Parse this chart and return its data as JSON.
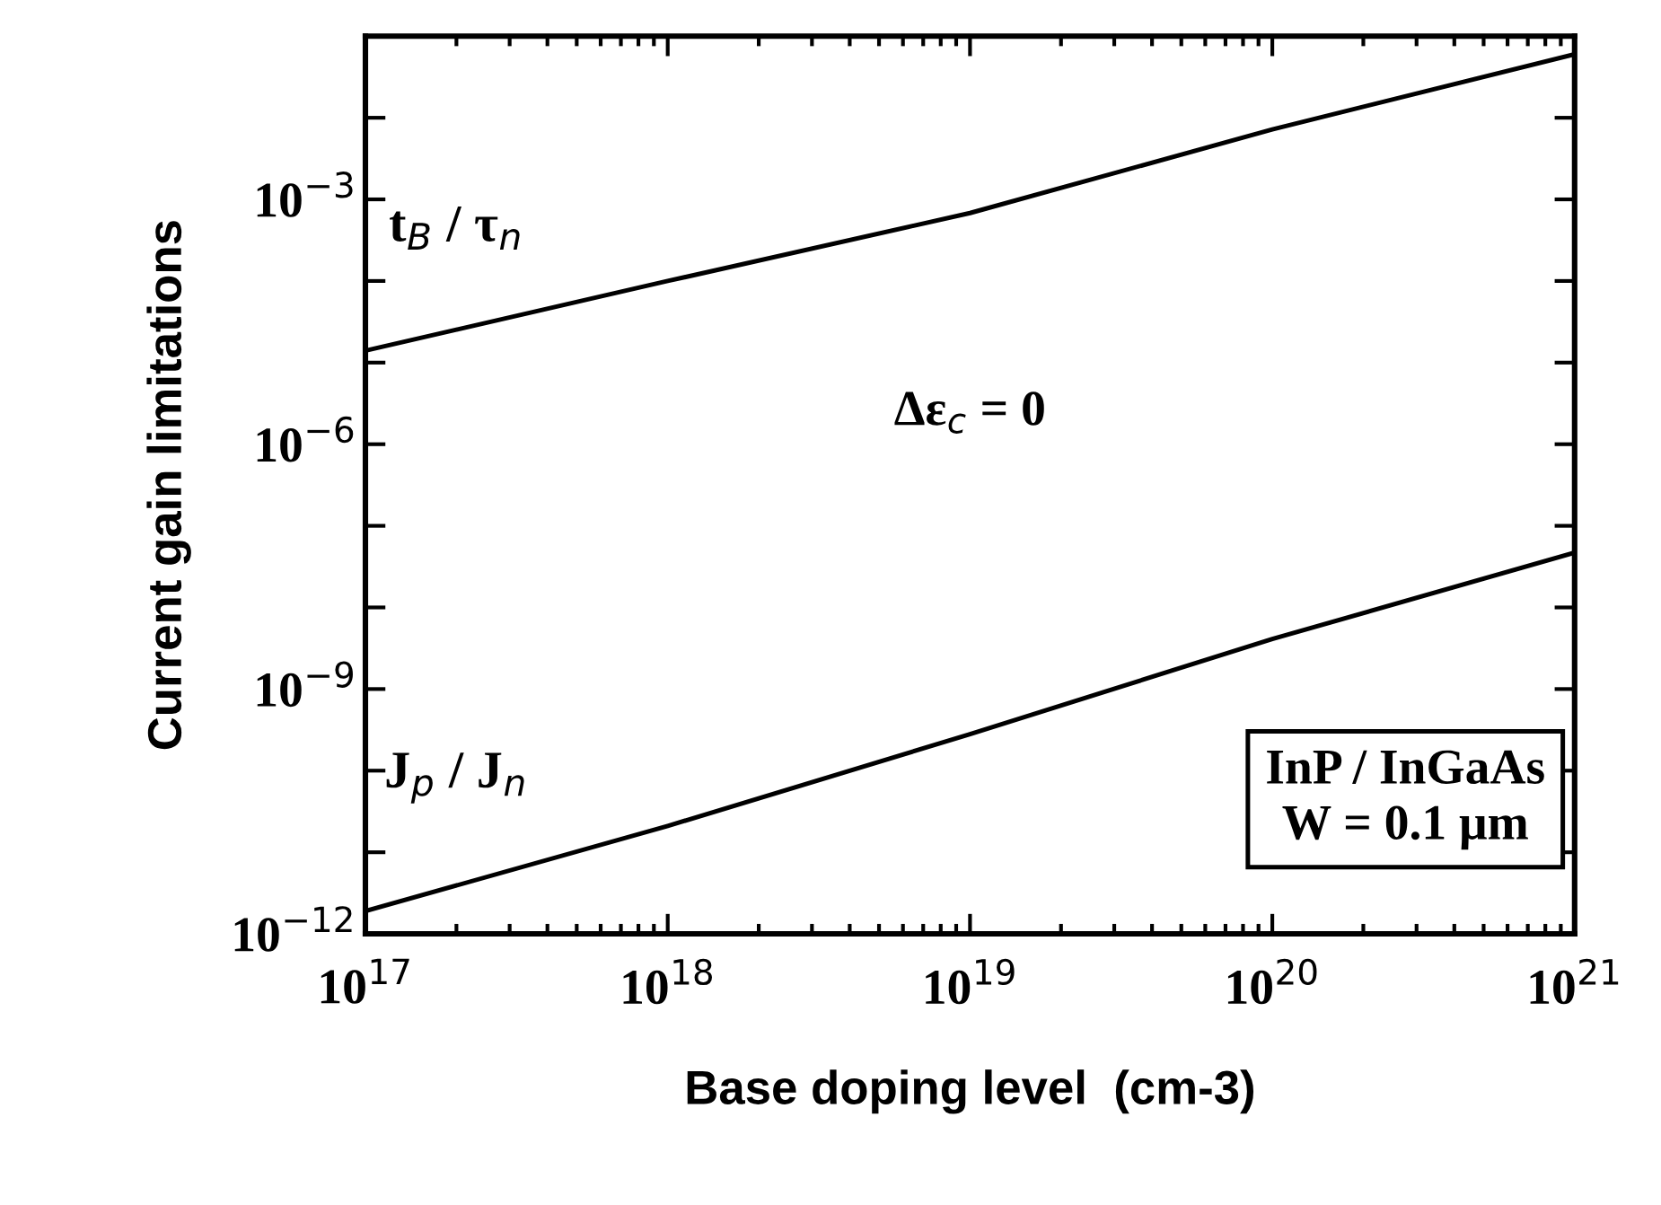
{
  "chart_data": {
    "type": "line",
    "xlabel": "Base doping level  (cm-3)",
    "ylabel": "Current gain limitations",
    "log": "xy",
    "grid": false,
    "legend": false,
    "x": [
      1e+17,
      1e+18,
      1e+19,
      1e+20,
      1e+21
    ],
    "series": [
      {
        "name": "t$_{B}$ / τ$_{n}$",
        "color": "#000000",
        "values": [
          1.4e-05,
          0.0001,
          0.00068,
          0.0072,
          0.06
        ]
      },
      {
        "name": "J$_{p}$ / J$_{n}$",
        "color": "#000000",
        "values": [
          1.9e-12,
          2.1e-11,
          2.8e-10,
          4.1e-09,
          4.7e-08
        ]
      }
    ],
    "xlim": [
      1e+17,
      1e+21
    ],
    "ylim": [
      1e-12,
      0.1
    ],
    "xticks": [
      {
        "value": 1e+17,
        "label": "10$^{17}$"
      },
      {
        "value": 1e+18,
        "label": "10$^{18}$"
      },
      {
        "value": 1e+19,
        "label": "10$^{19}$"
      },
      {
        "value": 1e+20,
        "label": "10$^{20}$"
      },
      {
        "value": 1e+21,
        "label": "10$^{21}$"
      }
    ],
    "yticks": [
      {
        "value": 1e-12,
        "label": "10$^{−12}$"
      },
      {
        "value": 1e-11,
        "label": null
      },
      {
        "value": 1e-10,
        "label": null
      },
      {
        "value": 1e-09,
        "label": "10$^{−9}$"
      },
      {
        "value": 1e-08,
        "label": null
      },
      {
        "value": 1e-07,
        "label": null
      },
      {
        "value": 1e-06,
        "label": "10$^{−6}$"
      },
      {
        "value": 1e-05,
        "label": null
      },
      {
        "value": 0.0001,
        "label": null
      },
      {
        "value": 0.001,
        "label": "10$^{−3}$"
      },
      {
        "value": 0.01,
        "label": null
      },
      {
        "value": 0.1,
        "label": null
      }
    ],
    "annotations": [
      "Δε$_{c}$ = 0",
      "InP / InGaAs\nW = 0.1 μm"
    ]
  }
}
